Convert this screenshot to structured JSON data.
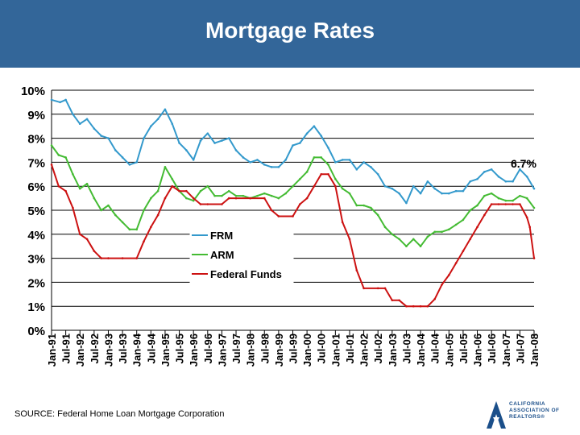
{
  "page": {
    "title": "Mortgage Rates",
    "source": "SOURCE: Federal Home Loan Mortgage Corporation"
  },
  "logo": {
    "text": "CALIFORNIA ASSOCIATION OF REALTORS®"
  },
  "colors": {
    "title_bg": "#336699",
    "frm": "#3399cc",
    "arm": "#44bb33",
    "fed": "#cc1111",
    "grid": "#000000"
  },
  "chart_data": {
    "type": "line",
    "title": "Mortgage Rates",
    "xlabel": "",
    "ylabel": "",
    "ylim": [
      0,
      10
    ],
    "y_ticks": [
      "0%",
      "1%",
      "2%",
      "3%",
      "4%",
      "5%",
      "6%",
      "7%",
      "8%",
      "9%",
      "10%"
    ],
    "x_start": "Jan-91",
    "x_end": "Jan-08",
    "x_tick_labels": [
      "Jan-91",
      "Jul-91",
      "Jan-92",
      "Jul-92",
      "Jan-93",
      "Jul-93",
      "Jan-94",
      "Jul-94",
      "Jan-95",
      "Jul-95",
      "Jan-96",
      "Jul-96",
      "Jan-97",
      "Jul-97",
      "Jan-98",
      "Jul-98",
      "Jan-99",
      "Jul-99",
      "Jan-00",
      "Jul-00",
      "Jan-01",
      "Jul-01",
      "Jan-02",
      "Jul-02",
      "Jan-03",
      "Jul-03",
      "Jan-04",
      "Jul-04",
      "Jan-05",
      "Jul-05",
      "Jan-06",
      "Jul-06",
      "Jan-07",
      "Jul-07",
      "Jan-08"
    ],
    "annotation": "6.7%",
    "legend": [
      "FRM",
      "ARM",
      "Federal Funds"
    ],
    "legend_position": "center",
    "series": [
      {
        "name": "FRM",
        "values": [
          [
            1991.0,
            9.6
          ],
          [
            1991.3,
            9.5
          ],
          [
            1991.5,
            9.6
          ],
          [
            1991.75,
            9.0
          ],
          [
            1992.0,
            8.6
          ],
          [
            1992.25,
            8.8
          ],
          [
            1992.5,
            8.4
          ],
          [
            1992.75,
            8.1
          ],
          [
            1993.0,
            8.0
          ],
          [
            1993.25,
            7.5
          ],
          [
            1993.5,
            7.2
          ],
          [
            1993.75,
            6.9
          ],
          [
            1994.0,
            7.0
          ],
          [
            1994.25,
            8.0
          ],
          [
            1994.5,
            8.5
          ],
          [
            1994.75,
            8.8
          ],
          [
            1995.0,
            9.2
          ],
          [
            1995.25,
            8.6
          ],
          [
            1995.5,
            7.8
          ],
          [
            1995.75,
            7.5
          ],
          [
            1996.0,
            7.1
          ],
          [
            1996.25,
            7.9
          ],
          [
            1996.5,
            8.2
          ],
          [
            1996.75,
            7.8
          ],
          [
            1997.0,
            7.9
          ],
          [
            1997.25,
            8.0
          ],
          [
            1997.5,
            7.5
          ],
          [
            1997.75,
            7.2
          ],
          [
            1998.0,
            7.0
          ],
          [
            1998.25,
            7.1
          ],
          [
            1998.5,
            6.9
          ],
          [
            1998.75,
            6.8
          ],
          [
            1999.0,
            6.8
          ],
          [
            1999.25,
            7.1
          ],
          [
            1999.5,
            7.7
          ],
          [
            1999.75,
            7.8
          ],
          [
            2000.0,
            8.2
          ],
          [
            2000.25,
            8.5
          ],
          [
            2000.5,
            8.1
          ],
          [
            2000.75,
            7.6
          ],
          [
            2001.0,
            7.0
          ],
          [
            2001.25,
            7.1
          ],
          [
            2001.5,
            7.1
          ],
          [
            2001.75,
            6.7
          ],
          [
            2002.0,
            7.0
          ],
          [
            2002.25,
            6.8
          ],
          [
            2002.5,
            6.5
          ],
          [
            2002.75,
            6.0
          ],
          [
            2003.0,
            5.9
          ],
          [
            2003.25,
            5.7
          ],
          [
            2003.5,
            5.3
          ],
          [
            2003.75,
            6.0
          ],
          [
            2004.0,
            5.7
          ],
          [
            2004.25,
            6.2
          ],
          [
            2004.5,
            5.9
          ],
          [
            2004.75,
            5.7
          ],
          [
            2005.0,
            5.7
          ],
          [
            2005.25,
            5.8
          ],
          [
            2005.5,
            5.8
          ],
          [
            2005.75,
            6.2
          ],
          [
            2006.0,
            6.3
          ],
          [
            2006.25,
            6.6
          ],
          [
            2006.5,
            6.7
          ],
          [
            2006.75,
            6.4
          ],
          [
            2007.0,
            6.2
          ],
          [
            2007.25,
            6.2
          ],
          [
            2007.5,
            6.7
          ],
          [
            2007.75,
            6.4
          ],
          [
            2008.0,
            5.9
          ]
        ]
      },
      {
        "name": "ARM",
        "values": [
          [
            1991.0,
            7.7
          ],
          [
            1991.25,
            7.3
          ],
          [
            1991.5,
            7.2
          ],
          [
            1991.75,
            6.5
          ],
          [
            1992.0,
            5.9
          ],
          [
            1992.25,
            6.1
          ],
          [
            1992.5,
            5.5
          ],
          [
            1992.75,
            5.0
          ],
          [
            1993.0,
            5.2
          ],
          [
            1993.25,
            4.8
          ],
          [
            1993.5,
            4.5
          ],
          [
            1993.75,
            4.2
          ],
          [
            1994.0,
            4.2
          ],
          [
            1994.25,
            5.0
          ],
          [
            1994.5,
            5.5
          ],
          [
            1994.75,
            5.8
          ],
          [
            1995.0,
            6.8
          ],
          [
            1995.25,
            6.3
          ],
          [
            1995.5,
            5.8
          ],
          [
            1995.75,
            5.5
          ],
          [
            1996.0,
            5.4
          ],
          [
            1996.25,
            5.8
          ],
          [
            1996.5,
            6.0
          ],
          [
            1996.75,
            5.6
          ],
          [
            1997.0,
            5.6
          ],
          [
            1997.25,
            5.8
          ],
          [
            1997.5,
            5.6
          ],
          [
            1997.75,
            5.6
          ],
          [
            1998.0,
            5.5
          ],
          [
            1998.25,
            5.6
          ],
          [
            1998.5,
            5.7
          ],
          [
            1998.75,
            5.6
          ],
          [
            1999.0,
            5.5
          ],
          [
            1999.25,
            5.7
          ],
          [
            1999.5,
            6.0
          ],
          [
            1999.75,
            6.3
          ],
          [
            2000.0,
            6.6
          ],
          [
            2000.25,
            7.2
          ],
          [
            2000.5,
            7.2
          ],
          [
            2000.75,
            6.9
          ],
          [
            2001.0,
            6.3
          ],
          [
            2001.25,
            5.9
          ],
          [
            2001.5,
            5.7
          ],
          [
            2001.75,
            5.2
          ],
          [
            2002.0,
            5.2
          ],
          [
            2002.25,
            5.1
          ],
          [
            2002.5,
            4.8
          ],
          [
            2002.75,
            4.3
          ],
          [
            2003.0,
            4.0
          ],
          [
            2003.25,
            3.8
          ],
          [
            2003.5,
            3.5
          ],
          [
            2003.75,
            3.8
          ],
          [
            2004.0,
            3.5
          ],
          [
            2004.25,
            3.9
          ],
          [
            2004.5,
            4.1
          ],
          [
            2004.75,
            4.1
          ],
          [
            2005.0,
            4.2
          ],
          [
            2005.25,
            4.4
          ],
          [
            2005.5,
            4.6
          ],
          [
            2005.75,
            5.0
          ],
          [
            2006.0,
            5.2
          ],
          [
            2006.25,
            5.6
          ],
          [
            2006.5,
            5.7
          ],
          [
            2006.75,
            5.5
          ],
          [
            2007.0,
            5.4
          ],
          [
            2007.25,
            5.4
          ],
          [
            2007.5,
            5.6
          ],
          [
            2007.75,
            5.5
          ],
          [
            2008.0,
            5.1
          ]
        ]
      },
      {
        "name": "Federal Funds",
        "values": [
          [
            1991.0,
            6.9
          ],
          [
            1991.25,
            6.0
          ],
          [
            1991.5,
            5.8
          ],
          [
            1991.75,
            5.1
          ],
          [
            1992.0,
            4.0
          ],
          [
            1992.25,
            3.8
          ],
          [
            1992.5,
            3.3
          ],
          [
            1992.75,
            3.0
          ],
          [
            1993.0,
            3.0
          ],
          [
            1993.5,
            3.0
          ],
          [
            1994.0,
            3.0
          ],
          [
            1994.25,
            3.7
          ],
          [
            1994.5,
            4.3
          ],
          [
            1994.75,
            4.8
          ],
          [
            1995.0,
            5.5
          ],
          [
            1995.25,
            6.0
          ],
          [
            1995.5,
            5.8
          ],
          [
            1995.75,
            5.8
          ],
          [
            1996.0,
            5.5
          ],
          [
            1996.25,
            5.25
          ],
          [
            1996.5,
            5.25
          ],
          [
            1997.0,
            5.25
          ],
          [
            1997.25,
            5.5
          ],
          [
            1997.5,
            5.5
          ],
          [
            1998.0,
            5.5
          ],
          [
            1998.5,
            5.5
          ],
          [
            1998.75,
            5.0
          ],
          [
            1999.0,
            4.75
          ],
          [
            1999.5,
            4.75
          ],
          [
            1999.75,
            5.25
          ],
          [
            2000.0,
            5.5
          ],
          [
            2000.25,
            6.0
          ],
          [
            2000.5,
            6.5
          ],
          [
            2000.75,
            6.5
          ],
          [
            2001.0,
            6.0
          ],
          [
            2001.25,
            4.5
          ],
          [
            2001.5,
            3.8
          ],
          [
            2001.75,
            2.5
          ],
          [
            2002.0,
            1.75
          ],
          [
            2002.5,
            1.75
          ],
          [
            2002.75,
            1.75
          ],
          [
            2003.0,
            1.25
          ],
          [
            2003.25,
            1.25
          ],
          [
            2003.5,
            1.0
          ],
          [
            2003.75,
            1.0
          ],
          [
            2004.0,
            1.0
          ],
          [
            2004.25,
            1.0
          ],
          [
            2004.5,
            1.3
          ],
          [
            2004.75,
            1.9
          ],
          [
            2005.0,
            2.3
          ],
          [
            2005.25,
            2.8
          ],
          [
            2005.5,
            3.3
          ],
          [
            2005.75,
            3.8
          ],
          [
            2006.0,
            4.3
          ],
          [
            2006.25,
            4.8
          ],
          [
            2006.5,
            5.25
          ],
          [
            2006.75,
            5.25
          ],
          [
            2007.0,
            5.25
          ],
          [
            2007.25,
            5.25
          ],
          [
            2007.5,
            5.25
          ],
          [
            2007.75,
            4.7
          ],
          [
            2007.85,
            4.3
          ],
          [
            2008.0,
            3.0
          ]
        ]
      }
    ]
  }
}
